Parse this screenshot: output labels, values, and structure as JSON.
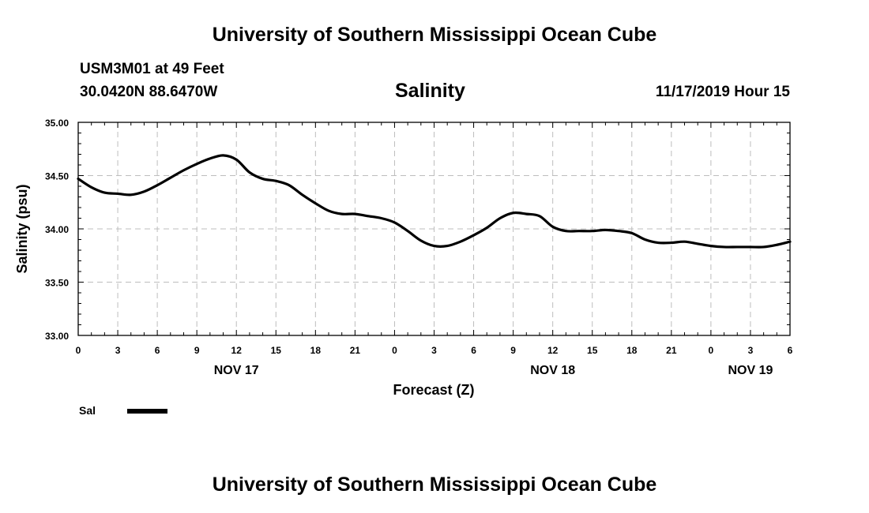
{
  "header": {
    "title": "University of Southern Mississippi Ocean Cube",
    "station": "USM3M01 at 49 Feet",
    "coords": "30.0420N 88.6470W",
    "run_time": "11/17/2019 Hour 15"
  },
  "footer": {
    "title": "University of Southern Mississippi Ocean Cube"
  },
  "chart_data": {
    "type": "line",
    "title": "Salinity",
    "xlabel": "Forecast (Z)",
    "ylabel": "Salinity (psu)",
    "ylim": [
      33.0,
      35.0
    ],
    "yticks": [
      "33.00",
      "33.50",
      "34.00",
      "34.50",
      "35.00"
    ],
    "xlim": [
      0,
      54
    ],
    "x_tick_values": [
      0,
      3,
      6,
      9,
      12,
      15,
      18,
      21,
      24,
      27,
      30,
      33,
      36,
      39,
      42,
      45,
      48,
      51,
      54
    ],
    "x_tick_labels": [
      "0",
      "3",
      "6",
      "9",
      "12",
      "15",
      "18",
      "21",
      "0",
      "3",
      "6",
      "9",
      "12",
      "15",
      "18",
      "21",
      "0",
      "3",
      "6"
    ],
    "day_labels": [
      {
        "label": "NOV 17",
        "x": 12
      },
      {
        "label": "NOV 18",
        "x": 36
      },
      {
        "label": "NOV 19",
        "x": 51
      }
    ],
    "grid": true,
    "legend": [
      {
        "name": "Sal",
        "color": "#000000"
      }
    ],
    "series": [
      {
        "name": "Sal",
        "color": "#000000",
        "x": [
          0,
          1,
          2,
          3,
          4,
          5,
          6,
          7,
          8,
          9,
          10,
          11,
          12,
          13,
          14,
          15,
          16,
          17,
          18,
          19,
          20,
          21,
          22,
          23,
          24,
          25,
          26,
          27,
          28,
          29,
          30,
          31,
          32,
          33,
          34,
          35,
          36,
          37,
          38,
          39,
          40,
          41,
          42,
          43,
          44,
          45,
          46,
          47,
          48,
          49,
          50,
          51,
          52,
          53,
          54
        ],
        "y": [
          34.47,
          34.39,
          34.34,
          34.33,
          34.32,
          34.35,
          34.41,
          34.48,
          34.55,
          34.61,
          34.66,
          34.69,
          34.65,
          34.53,
          34.47,
          34.45,
          34.41,
          34.32,
          34.24,
          34.17,
          34.14,
          34.14,
          34.12,
          34.1,
          34.06,
          33.98,
          33.89,
          33.84,
          33.84,
          33.88,
          33.94,
          34.01,
          34.1,
          34.15,
          34.14,
          34.12,
          34.02,
          33.98,
          33.98,
          33.98,
          33.99,
          33.98,
          33.96,
          33.9,
          33.87,
          33.87,
          33.88,
          33.86,
          33.84,
          33.83,
          33.83,
          33.83,
          33.83,
          33.85,
          33.88
        ]
      }
    ]
  }
}
